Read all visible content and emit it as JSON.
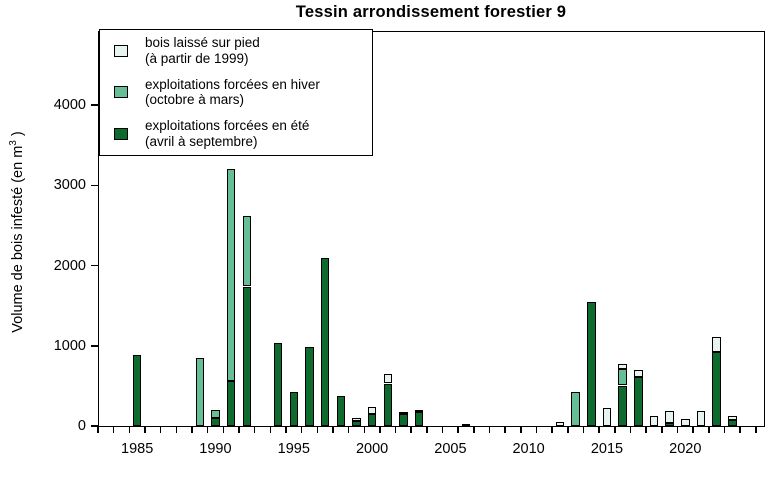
{
  "title": "Tessin arrondissement forestier 9",
  "colors": {
    "background": "#ffffff",
    "axis": "#000000",
    "bar_border": "#000000",
    "laisse": "#e7f3ef",
    "hiver": "#66be96",
    "ete": "#0e6b2e"
  },
  "chart_data": {
    "type": "bar",
    "stacked": true,
    "grid": false,
    "legend_position": "top-left",
    "title": "Tessin arrondissement forestier 9",
    "ylabel": "Volume de bois infesté (en m³)",
    "ylabel_parts": {
      "prefix": "Volume de bois infesté (en m",
      "sup": "3",
      "suffix": " )"
    },
    "ylim": [
      0,
      4900
    ],
    "yticks": [
      0,
      1000,
      2000,
      3000,
      4000
    ],
    "x_start_year": 1983,
    "x_end_year": 2024,
    "xtick_label_years": [
      1985,
      1990,
      1995,
      2000,
      2005,
      2010,
      2015,
      2020
    ],
    "series": [
      {
        "id": "laisse",
        "label_line1": "bois laissé sur pied",
        "label_line2": "(à partir de 1999)",
        "color": "#e7f3ef"
      },
      {
        "id": "hiver",
        "label_line1": "exploitations forcées en hiver",
        "label_line2": "(octobre à mars)",
        "color": "#66be96"
      },
      {
        "id": "ete",
        "label_line1": "exploitations forcées en été",
        "label_line2": "(avril à septembre)",
        "color": "#0e6b2e"
      }
    ],
    "stack_order_bottom_to_top": [
      "ete",
      "hiver",
      "laisse"
    ],
    "unit": "m³",
    "bars": [
      {
        "year": 1985,
        "ete": 880,
        "hiver": 0,
        "laisse": 0
      },
      {
        "year": 1989,
        "ete": 0,
        "hiver": 850,
        "laisse": 0
      },
      {
        "year": 1990,
        "ete": 100,
        "hiver": 100,
        "laisse": 0
      },
      {
        "year": 1991,
        "ete": 560,
        "hiver": 2650,
        "laisse": 0
      },
      {
        "year": 1992,
        "ete": 1740,
        "hiver": 880,
        "laisse": 0
      },
      {
        "year": 1994,
        "ete": 1030,
        "hiver": 0,
        "laisse": 0
      },
      {
        "year": 1995,
        "ete": 420,
        "hiver": 0,
        "laisse": 0
      },
      {
        "year": 1996,
        "ete": 990,
        "hiver": 0,
        "laisse": 0
      },
      {
        "year": 1997,
        "ete": 2090,
        "hiver": 0,
        "laisse": 0
      },
      {
        "year": 1998,
        "ete": 370,
        "hiver": 0,
        "laisse": 0
      },
      {
        "year": 1999,
        "ete": 65,
        "hiver": 0,
        "laisse": 40
      },
      {
        "year": 2000,
        "ete": 150,
        "hiver": 0,
        "laisse": 85
      },
      {
        "year": 2001,
        "ete": 530,
        "hiver": 0,
        "laisse": 115
      },
      {
        "year": 2002,
        "ete": 145,
        "hiver": 0,
        "laisse": 30
      },
      {
        "year": 2003,
        "ete": 175,
        "hiver": 0,
        "laisse": 30
      },
      {
        "year": 2006,
        "ete": 30,
        "hiver": 0,
        "laisse": 0
      },
      {
        "year": 2012,
        "ete": 0,
        "hiver": 0,
        "laisse": 50
      },
      {
        "year": 2013,
        "ete": 0,
        "hiver": 430,
        "laisse": 0
      },
      {
        "year": 2014,
        "ete": 1545,
        "hiver": 0,
        "laisse": 0
      },
      {
        "year": 2015,
        "ete": 0,
        "hiver": 0,
        "laisse": 220
      },
      {
        "year": 2016,
        "ete": 505,
        "hiver": 210,
        "laisse": 55
      },
      {
        "year": 2017,
        "ete": 615,
        "hiver": 0,
        "laisse": 85
      },
      {
        "year": 2018,
        "ete": 0,
        "hiver": 0,
        "laisse": 125
      },
      {
        "year": 2019,
        "ete": 40,
        "hiver": 0,
        "laisse": 150
      },
      {
        "year": 2020,
        "ete": 0,
        "hiver": 0,
        "laisse": 90
      },
      {
        "year": 2021,
        "ete": 0,
        "hiver": 0,
        "laisse": 185
      },
      {
        "year": 2022,
        "ete": 920,
        "hiver": 0,
        "laisse": 190
      },
      {
        "year": 2023,
        "ete": 80,
        "hiver": 0,
        "laisse": 45
      }
    ]
  }
}
